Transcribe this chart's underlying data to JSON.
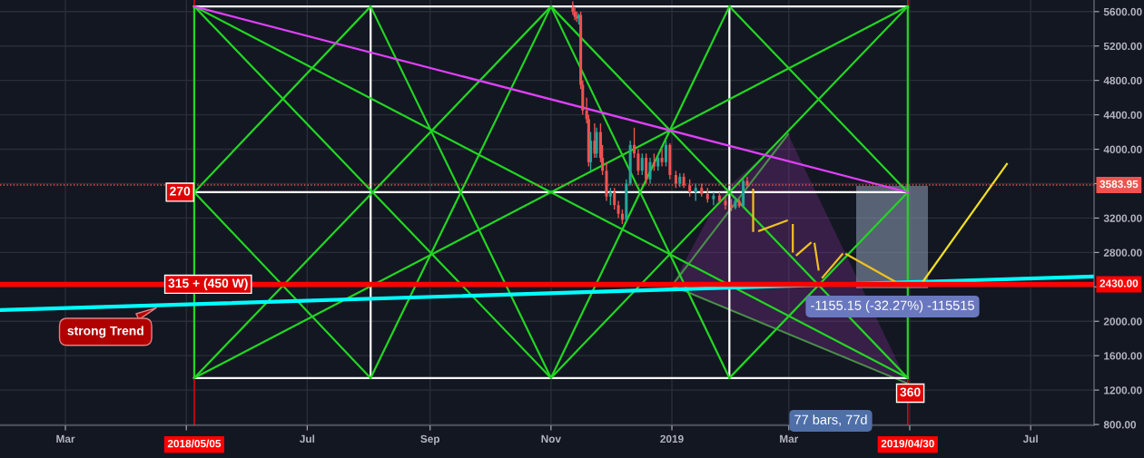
{
  "chart_data": {
    "type": "candlestick",
    "x": [
      "2018-11-12",
      "2018-11-13",
      "2018-11-14",
      "2018-11-15",
      "2018-11-16",
      "2018-11-17",
      "2018-11-19",
      "2018-11-20",
      "2018-11-21",
      "2018-11-23",
      "2018-11-24",
      "2018-11-26",
      "2018-11-27",
      "2018-11-29",
      "2018-12-01",
      "2018-12-03",
      "2018-12-05",
      "2018-12-07",
      "2018-12-09",
      "2018-12-11",
      "2018-12-13",
      "2018-12-15",
      "2018-12-17",
      "2018-12-19",
      "2018-12-21",
      "2018-12-23",
      "2018-12-25",
      "2018-12-27",
      "2018-12-29",
      "2018-12-31",
      "2019-01-03",
      "2019-01-05",
      "2019-01-07",
      "2019-01-10",
      "2019-01-13",
      "2019-01-16",
      "2019-01-19",
      "2019-01-22",
      "2019-01-25",
      "2019-01-28",
      "2019-01-31",
      "2019-02-02",
      "2019-02-04",
      "2019-02-06",
      "2019-02-08"
    ],
    "ohlc": [
      [
        5650,
        5720,
        5560,
        5600
      ],
      [
        5600,
        5660,
        5500,
        5540
      ],
      [
        5540,
        5600,
        5480,
        5520
      ],
      [
        5520,
        5580,
        5450,
        5560
      ],
      [
        5560,
        5600,
        4700,
        4750
      ],
      [
        4750,
        4800,
        4400,
        4450
      ],
      [
        4450,
        4600,
        4300,
        4350
      ],
      [
        4350,
        4400,
        3800,
        3850
      ],
      [
        3850,
        4200,
        3750,
        4100
      ],
      [
        4100,
        4300,
        3900,
        3950
      ],
      [
        3950,
        4250,
        3900,
        4200
      ],
      [
        4200,
        4300,
        3850,
        3900
      ],
      [
        3900,
        4050,
        3700,
        3750
      ],
      [
        3750,
        3850,
        3400,
        3450
      ],
      [
        3450,
        3550,
        3350,
        3500
      ],
      [
        3500,
        3550,
        3300,
        3350
      ],
      [
        3350,
        3400,
        3200,
        3250
      ],
      [
        3250,
        3300,
        3130,
        3180
      ],
      [
        3180,
        3650,
        3170,
        3600
      ],
      [
        3600,
        4100,
        3580,
        4050
      ],
      [
        4050,
        4250,
        3900,
        3950
      ],
      [
        3950,
        4000,
        3700,
        3750
      ],
      [
        3750,
        3950,
        3700,
        3900
      ],
      [
        3900,
        3950,
        3600,
        3650
      ],
      [
        3650,
        3900,
        3600,
        3850
      ],
      [
        3850,
        3950,
        3750,
        3800
      ],
      [
        3800,
        3950,
        3750,
        3900
      ],
      [
        3900,
        4000,
        3800,
        3850
      ],
      [
        3850,
        4100,
        3800,
        4050
      ],
      [
        4050,
        4070,
        3650,
        3700
      ],
      [
        3700,
        3750,
        3550,
        3600
      ],
      [
        3600,
        3720,
        3560,
        3680
      ],
      [
        3680,
        3720,
        3550,
        3580
      ],
      [
        3580,
        3650,
        3450,
        3500
      ],
      [
        3500,
        3600,
        3400,
        3550
      ],
      [
        3550,
        3600,
        3450,
        3480
      ],
      [
        3480,
        3550,
        3380,
        3420
      ],
      [
        3420,
        3500,
        3350,
        3460
      ],
      [
        3460,
        3500,
        3380,
        3400
      ],
      [
        3400,
        3450,
        3300,
        3350
      ],
      [
        3350,
        3420,
        3280,
        3320
      ],
      [
        3320,
        3450,
        3300,
        3400
      ],
      [
        3400,
        3420,
        3320,
        3340
      ],
      [
        3340,
        3660,
        3330,
        3630
      ],
      [
        3630,
        3680,
        3560,
        3583.95
      ]
    ],
    "series": [
      {
        "type": "line",
        "color": "#22d622",
        "x": [
          "2018-05-05",
          "2018-05-05"
        ],
        "values": [
          5660,
          1340
        ]
      },
      {
        "type": "line",
        "color": "#22d622",
        "x": [
          "2019-04-30",
          "2019-04-30"
        ],
        "values": [
          5660,
          1340
        ]
      },
      {
        "type": "line",
        "color": "#ffffff",
        "x": [
          "2018-05-05",
          "2019-04-30"
        ],
        "values": [
          5660,
          5660
        ]
      },
      {
        "type": "line",
        "color": "#ffffff",
        "x": [
          "2018-05-05",
          "2019-04-30"
        ],
        "values": [
          1340,
          1340
        ]
      },
      {
        "type": "line",
        "color": "#ffffff",
        "x": [
          "2018-05-05",
          "2019-04-30"
        ],
        "values": [
          3500,
          3500
        ]
      },
      {
        "type": "line",
        "color": "#ffffff",
        "x": [
          "2018-08-02",
          "2018-08-02"
        ],
        "values": [
          5660,
          1340
        ]
      },
      {
        "type": "line",
        "color": "#ffffff",
        "x": [
          "2019-01-30",
          "2019-01-30"
        ],
        "values": [
          5660,
          1340
        ]
      },
      {
        "type": "line",
        "color": "#22d622",
        "x": [
          "2018-05-05",
          "2019-04-30"
        ],
        "values": [
          5660,
          1340
        ]
      },
      {
        "type": "line",
        "color": "#22d622",
        "x": [
          "2018-05-05",
          "2019-04-30"
        ],
        "values": [
          1340,
          5660
        ]
      },
      {
        "type": "line",
        "color": "#22d622",
        "x": [
          "2018-05-05",
          "2018-11-01",
          "2019-04-30"
        ],
        "values": [
          5660,
          1340,
          5660
        ]
      },
      {
        "type": "line",
        "color": "#22d622",
        "x": [
          "2018-05-05",
          "2018-11-01",
          "2019-04-30"
        ],
        "values": [
          1340,
          5660,
          1340
        ]
      },
      {
        "type": "line",
        "color": "#22d622",
        "x": [
          "2018-08-02",
          "2018-05-05",
          "2018-08-02"
        ],
        "values": [
          5660,
          3500,
          1340
        ]
      },
      {
        "type": "line",
        "color": "#22d622",
        "x": [
          "2019-01-30",
          "2019-04-30",
          "2019-01-30"
        ],
        "values": [
          5660,
          3500,
          1340
        ]
      },
      {
        "type": "line",
        "color": "#22d622",
        "x": [
          "2018-08-02",
          "2018-11-01",
          "2019-01-30"
        ],
        "values": [
          5660,
          1340,
          5660
        ]
      },
      {
        "type": "line",
        "color": "#22d622",
        "x": [
          "2018-08-02",
          "2018-11-01",
          "2019-01-30"
        ],
        "values": [
          1340,
          5660,
          1340
        ]
      },
      {
        "type": "line",
        "color": "#e040fb",
        "x": [
          "2018-05-05",
          "2019-04-30"
        ],
        "values": [
          5660,
          3500
        ]
      },
      {
        "type": "line",
        "color": "#00ffff",
        "x": [
          "2018-01-27",
          "2019-08-02"
        ],
        "values": [
          2130,
          2520
        ]
      },
      {
        "type": "line",
        "color": "#f0c020",
        "x": [
          "2019-02-11",
          "2019-02-11",
          "2019-02-12",
          "2019-02-14",
          "2019-02-28",
          "2019-03-01",
          "2019-03-03",
          "2019-03-03",
          "2019-03-04",
          "2019-03-05",
          "2019-03-12",
          "2019-03-13",
          "2019-03-14",
          "2019-03-16",
          "2019-03-17",
          "2019-03-18",
          "2019-03-28",
          "2019-03-29",
          "2019-03-30",
          "2019-04-26"
        ],
        "values": [
          3530,
          3050,
          null,
          3050,
          3170,
          null,
          3120,
          2810,
          null,
          2770,
          2910,
          null,
          2900,
          2600,
          null,
          2510,
          2780,
          null,
          2780,
          2430
        ]
      },
      {
        "type": "line",
        "color": "#f0e020",
        "x": [
          "2019-05-07",
          "2019-06-19"
        ],
        "values": [
          2440,
          3830
        ]
      }
    ],
    "ref_lines": [
      {
        "axis": "y",
        "value": 2430,
        "label": "2430.00",
        "color": "#ff0000",
        "line_style": "solid"
      },
      {
        "axis": "y",
        "value": 3583.95,
        "label": "3583.95",
        "color": "#ef5350",
        "line_style": "dotted"
      },
      {
        "axis": "x",
        "value": "2018-05-05",
        "label": "2018/05/05",
        "color": "#ff0000",
        "line_style": "solid"
      },
      {
        "axis": "x",
        "value": "2019-04-30",
        "label": "2019/04/30",
        "color": "#ff0000",
        "line_style": "solid"
      }
    ],
    "annotations": [
      {
        "text": "270",
        "x": "2018-05-05",
        "y": 3500
      },
      {
        "text": "315 + (450 W)",
        "x": "2018-05-12",
        "y": 2430
      },
      {
        "text": "360",
        "x": "2019-04-30",
        "y": 1340
      },
      {
        "text": "strong Trend",
        "x": "2018-04-17",
        "y": 2170
      },
      "-1155.15 (-32.27%) -115515",
      "77 bars, 77d"
    ],
    "xlim": [
      "2018-01-27",
      "2019-08-02"
    ],
    "xticks": [
      {
        "value": "2018-03-01",
        "label": "Mar"
      },
      {
        "value": "2018-05-01",
        "label": null
      },
      {
        "value": "2018-07-01",
        "label": "Jul"
      },
      {
        "value": "2018-09-01",
        "label": "Sep"
      },
      {
        "value": "2018-11-01",
        "label": "Nov"
      },
      {
        "value": "2019-01-01",
        "label": "2019"
      },
      {
        "value": "2019-03-01",
        "label": "Mar"
      },
      {
        "value": "2019-05-01",
        "label": null
      },
      {
        "value": "2019-07-01",
        "label": "Jul"
      }
    ],
    "ylim": [
      790,
      5735
    ],
    "yticks": [
      {
        "value": 800,
        "label": "800.00"
      },
      {
        "value": 1200,
        "label": "1200.00"
      },
      {
        "value": 1600,
        "label": "1600.00"
      },
      {
        "value": 2000,
        "label": "2000.00"
      },
      {
        "value": 2400,
        "label": null
      },
      {
        "value": 2800,
        "label": "2800.00"
      },
      {
        "value": 3200,
        "label": "3200.00"
      },
      {
        "value": 3600,
        "label": null
      },
      {
        "value": 4000,
        "label": "4000.00"
      },
      {
        "value": 4400,
        "label": "4400.00"
      },
      {
        "value": 4800,
        "label": "4800.00"
      },
      {
        "value": 5200,
        "label": "5200.00"
      },
      {
        "value": 5600,
        "label": "5600.00"
      }
    ],
    "grid": true
  }
}
